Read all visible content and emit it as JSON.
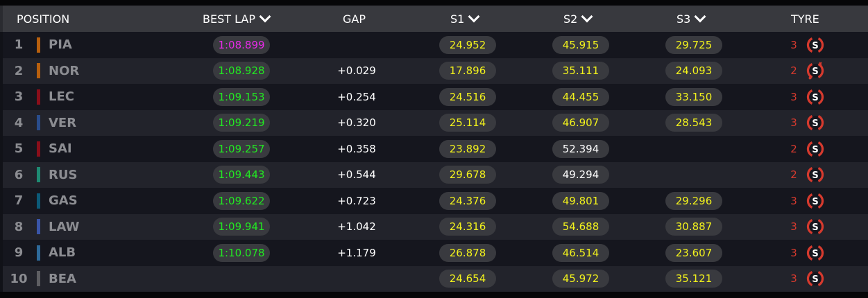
{
  "header": {
    "position": "POSITION",
    "best_lap": "BEST LAP",
    "gap": "GAP",
    "s1": "S1",
    "s2": "S2",
    "s3": "S3",
    "tyre": "TYRE"
  },
  "colors": {
    "purple": "#e62be6",
    "green": "#22e822",
    "yellow": "#f2f21c",
    "white": "#ffffff",
    "tyre_red": "#d63a2e"
  },
  "rows": [
    {
      "pos": "1",
      "code": "PIA",
      "team_color": "#b8600e",
      "best_lap": "1:08.899",
      "lap_color": "purple",
      "gap": "",
      "s1": "24.952",
      "s1_color": "yellow",
      "s2": "45.915",
      "s2_color": "yellow",
      "s3": "29.725",
      "s3_color": "yellow",
      "tyre_laps": "3",
      "tyre": "S",
      "tyre_new": true
    },
    {
      "pos": "2",
      "code": "NOR",
      "team_color": "#b8600e",
      "best_lap": "1:08.928",
      "lap_color": "green",
      "gap": "+0.029",
      "s1": "17.896",
      "s1_color": "yellow",
      "s2": "35.111",
      "s2_color": "yellow",
      "s3": "24.093",
      "s3_color": "yellow",
      "tyre_laps": "2",
      "tyre": "S",
      "tyre_new": false
    },
    {
      "pos": "3",
      "code": "LEC",
      "team_color": "#8a0e1a",
      "best_lap": "1:09.153",
      "lap_color": "green",
      "gap": "+0.254",
      "s1": "24.516",
      "s1_color": "yellow",
      "s2": "44.455",
      "s2_color": "yellow",
      "s3": "33.150",
      "s3_color": "yellow",
      "tyre_laps": "3",
      "tyre": "S",
      "tyre_new": true
    },
    {
      "pos": "4",
      "code": "VER",
      "team_color": "#2a4d8c",
      "best_lap": "1:09.219",
      "lap_color": "green",
      "gap": "+0.320",
      "s1": "25.114",
      "s1_color": "yellow",
      "s2": "46.907",
      "s2_color": "yellow",
      "s3": "28.543",
      "s3_color": "yellow",
      "tyre_laps": "3",
      "tyre": "S",
      "tyre_new": true
    },
    {
      "pos": "5",
      "code": "SAI",
      "team_color": "#8a0e1a",
      "best_lap": "1:09.257",
      "lap_color": "green",
      "gap": "+0.358",
      "s1": "23.892",
      "s1_color": "yellow",
      "s2": "52.394",
      "s2_color": "white",
      "s3": "",
      "s3_color": "yellow",
      "tyre_laps": "2",
      "tyre": "S",
      "tyre_new": true
    },
    {
      "pos": "6",
      "code": "RUS",
      "team_color": "#1e8a72",
      "best_lap": "1:09.443",
      "lap_color": "green",
      "gap": "+0.544",
      "s1": "29.678",
      "s1_color": "yellow",
      "s2": "49.294",
      "s2_color": "white",
      "s3": "",
      "s3_color": "yellow",
      "tyre_laps": "2",
      "tyre": "S",
      "tyre_new": true
    },
    {
      "pos": "7",
      "code": "GAS",
      "team_color": "#0c5a78",
      "best_lap": "1:09.622",
      "lap_color": "green",
      "gap": "+0.723",
      "s1": "24.376",
      "s1_color": "yellow",
      "s2": "49.801",
      "s2_color": "yellow",
      "s3": "29.296",
      "s3_color": "yellow",
      "tyre_laps": "3",
      "tyre": "S",
      "tyre_new": true
    },
    {
      "pos": "8",
      "code": "LAW",
      "team_color": "#3a55a8",
      "best_lap": "1:09.941",
      "lap_color": "green",
      "gap": "+1.042",
      "s1": "24.316",
      "s1_color": "yellow",
      "s2": "54.688",
      "s2_color": "yellow",
      "s3": "30.887",
      "s3_color": "yellow",
      "tyre_laps": "3",
      "tyre": "S",
      "tyre_new": true
    },
    {
      "pos": "9",
      "code": "ALB",
      "team_color": "#2e6a9a",
      "best_lap": "1:10.078",
      "lap_color": "green",
      "gap": "+1.179",
      "s1": "26.878",
      "s1_color": "yellow",
      "s2": "46.514",
      "s2_color": "yellow",
      "s3": "23.607",
      "s3_color": "yellow",
      "tyre_laps": "3",
      "tyre": "S",
      "tyre_new": true
    },
    {
      "pos": "10",
      "code": "BEA",
      "team_color": "#5e5e62",
      "best_lap": "",
      "lap_color": "green",
      "gap": "",
      "s1": "24.654",
      "s1_color": "yellow",
      "s2": "45.972",
      "s2_color": "yellow",
      "s3": "35.121",
      "s3_color": "yellow",
      "tyre_laps": "3",
      "tyre": "S",
      "tyre_new": true
    }
  ]
}
